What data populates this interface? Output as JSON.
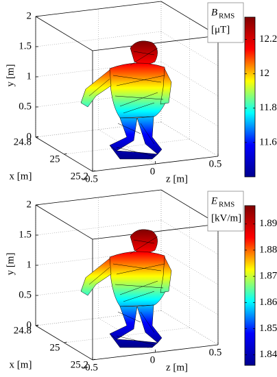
{
  "chart_data": [
    {
      "type": "surface3d",
      "colorbar_label": {
        "symbol": "B",
        "subscript": "RMS",
        "unit": "[μT]"
      },
      "xlabel": "x [m]",
      "ylabel": "y [m]",
      "zlabel": "z [m]",
      "xlim": [
        24.8,
        25.2
      ],
      "ylim": [
        0,
        2
      ],
      "zlim": [
        -0.5,
        0.5
      ],
      "xticks": [
        24.8,
        25,
        25.2
      ],
      "yticks": [
        0,
        0.5,
        1,
        1.5,
        2
      ],
      "zticks": [
        -0.5,
        0,
        0.5
      ],
      "clim": [
        11.4,
        12.33
      ],
      "cticks": [
        11.6,
        11.8,
        12,
        12.2
      ],
      "colormap": "jet",
      "grid": true
    },
    {
      "type": "surface3d",
      "colorbar_label": {
        "symbol": "E",
        "subscript": "RMS",
        "unit": "[kV/m]"
      },
      "xlabel": "x [m]",
      "ylabel": "y [m]",
      "zlabel": "z [m]",
      "xlim": [
        24.8,
        25.2
      ],
      "ylim": [
        0,
        2
      ],
      "zlim": [
        -0.5,
        0.5
      ],
      "xticks": [
        24.8,
        25,
        25.2
      ],
      "yticks": [
        0,
        0.5,
        1,
        1.5,
        2
      ],
      "zticks": [
        -0.5,
        0,
        0.5
      ],
      "clim": [
        1.836,
        1.897
      ],
      "cticks": [
        1.84,
        1.85,
        1.86,
        1.87,
        1.88,
        1.89
      ],
      "colormap": "jet",
      "grid": true
    }
  ]
}
